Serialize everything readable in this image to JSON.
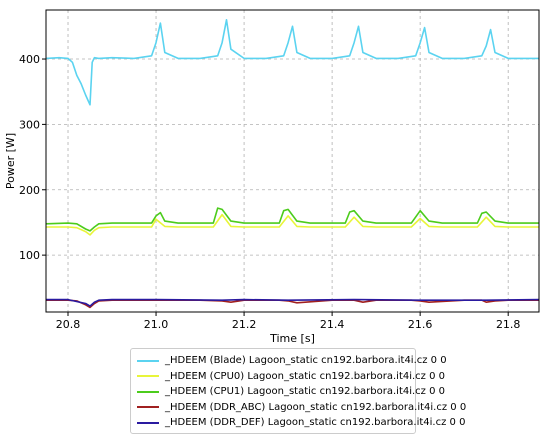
{
  "chart_data": {
    "type": "line",
    "xlabel": "Time [s]",
    "ylabel": "Power [W]",
    "xlim": [
      20.75,
      21.87
    ],
    "ylim": [
      13,
      475
    ],
    "xticks": [
      20.8,
      21.0,
      21.2,
      21.4,
      21.6,
      21.8
    ],
    "xtick_labels": [
      "20.8",
      "21.0",
      "21.2",
      "21.4",
      "21.6",
      "21.8"
    ],
    "yticks": [
      100,
      200,
      300,
      400
    ],
    "ytick_labels": [
      "100",
      "200",
      "300",
      "400"
    ],
    "grid": true,
    "legend_placement": "below",
    "series": [
      {
        "name": "_HDEEM (Blade) Lagoon_static cn192.barbora.it4i.cz 0 0",
        "color": "#5bd3f0",
        "x": [
          20.75,
          20.78,
          20.8,
          20.81,
          20.82,
          20.83,
          20.84,
          20.85,
          20.855,
          20.86,
          20.87,
          20.9,
          20.95,
          20.99,
          21.0,
          21.01,
          21.02,
          21.05,
          21.1,
          21.14,
          21.15,
          21.16,
          21.17,
          21.2,
          21.25,
          21.29,
          21.3,
          21.31,
          21.32,
          21.35,
          21.4,
          21.44,
          21.45,
          21.46,
          21.47,
          21.5,
          21.55,
          21.59,
          21.6,
          21.61,
          21.62,
          21.65,
          21.7,
          21.74,
          21.75,
          21.76,
          21.77,
          21.8,
          21.87
        ],
        "y": [
          401,
          402,
          401,
          395,
          375,
          362,
          345,
          330,
          395,
          402,
          401,
          402,
          401,
          405,
          425,
          455,
          410,
          401,
          401,
          405,
          425,
          460,
          415,
          401,
          401,
          405,
          425,
          450,
          410,
          401,
          401,
          405,
          425,
          450,
          410,
          401,
          401,
          405,
          425,
          448,
          410,
          401,
          401,
          405,
          420,
          445,
          410,
          401,
          401
        ]
      },
      {
        "name": "_HDEEM (CPU0) Lagoon_static cn192.barbora.it4i.cz 0 0",
        "color": "#e8f53a",
        "x": [
          20.75,
          20.8,
          20.82,
          20.84,
          20.85,
          20.86,
          20.87,
          20.9,
          20.99,
          21.0,
          21.02,
          21.05,
          21.13,
          21.15,
          21.17,
          21.2,
          21.28,
          21.3,
          21.32,
          21.35,
          21.43,
          21.45,
          21.47,
          21.5,
          21.58,
          21.6,
          21.62,
          21.65,
          21.73,
          21.75,
          21.77,
          21.8,
          21.87
        ],
        "y": [
          143,
          143,
          142,
          136,
          131,
          138,
          142,
          143,
          143,
          155,
          144,
          143,
          143,
          162,
          144,
          143,
          143,
          160,
          144,
          143,
          143,
          158,
          144,
          143,
          143,
          156,
          144,
          143,
          143,
          158,
          144,
          143,
          143
        ]
      },
      {
        "name": "_HDEEM (CPU1) Lagoon_static cn192.barbora.it4i.cz 0 0",
        "color": "#4ccc1c",
        "x": [
          20.75,
          20.8,
          20.82,
          20.84,
          20.85,
          20.86,
          20.87,
          20.9,
          20.99,
          21.0,
          21.01,
          21.02,
          21.05,
          21.13,
          21.14,
          21.15,
          21.17,
          21.2,
          21.28,
          21.29,
          21.3,
          21.32,
          21.35,
          21.43,
          21.44,
          21.45,
          21.47,
          21.5,
          21.58,
          21.6,
          21.62,
          21.65,
          21.73,
          21.74,
          21.75,
          21.77,
          21.8,
          21.87
        ],
        "y": [
          148,
          149,
          148,
          140,
          137,
          143,
          148,
          149,
          149,
          160,
          165,
          152,
          149,
          149,
          172,
          170,
          152,
          149,
          149,
          168,
          170,
          152,
          149,
          149,
          166,
          168,
          152,
          149,
          149,
          168,
          152,
          149,
          149,
          164,
          166,
          152,
          149,
          149
        ]
      },
      {
        "name": "_HDEEM (DDR_ABC) Lagoon_static cn192.barbora.it4i.cz 0 0",
        "color": "#a02020",
        "x": [
          20.75,
          20.8,
          20.82,
          20.84,
          20.85,
          20.86,
          20.87,
          20.9,
          21.0,
          21.1,
          21.15,
          21.17,
          21.2,
          21.28,
          21.3,
          21.32,
          21.4,
          21.45,
          21.47,
          21.5,
          21.58,
          21.6,
          21.62,
          21.7,
          21.74,
          21.75,
          21.77,
          21.8,
          21.87
        ],
        "y": [
          31,
          31,
          30,
          24,
          20,
          26,
          30,
          31,
          31,
          31,
          30,
          28,
          31,
          31,
          30,
          27,
          31,
          31,
          28,
          31,
          31,
          30,
          28,
          31,
          31,
          28,
          30,
          31,
          31
        ]
      },
      {
        "name": "_HDEEM (DDR_DEF) Lagoon_static cn192.barbora.it4i.cz 0 0",
        "color": "#2a1aa0",
        "x": [
          20.75,
          20.8,
          20.84,
          20.85,
          20.86,
          20.87,
          20.9,
          21.0,
          21.15,
          21.2,
          21.3,
          21.45,
          21.6,
          21.75,
          21.87
        ],
        "y": [
          32,
          32,
          26,
          22,
          28,
          31,
          32,
          32,
          31,
          32,
          31,
          32,
          31,
          31,
          32
        ]
      }
    ]
  }
}
